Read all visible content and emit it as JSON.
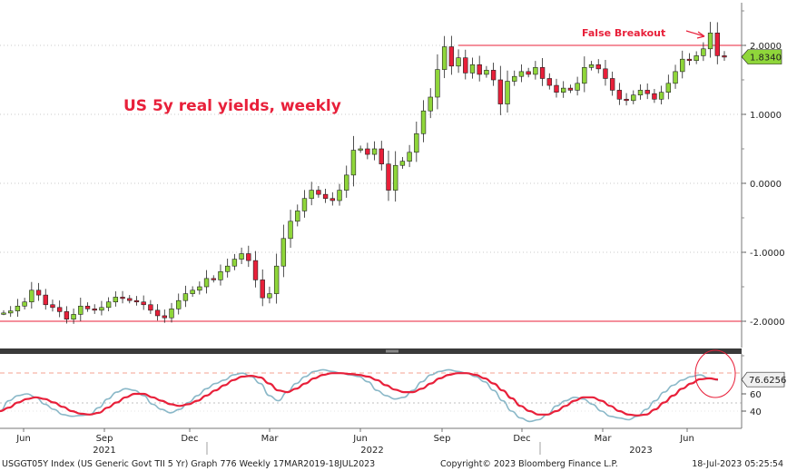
{
  "chart_data": [
    {
      "type": "candlestick",
      "title": "US 5y real yields, weekly",
      "annotation": "False Breakout",
      "y_ticks": [
        "2.0000",
        "1.0000",
        "0.0000",
        "-1.0000",
        "-2.0000"
      ],
      "y_tick_values": [
        2,
        1,
        0,
        -1,
        -2
      ],
      "ylim": [
        -2.6,
        2.6
      ],
      "last_value_label": "1.8340",
      "last_value": 1.834,
      "resistance_level": 2.0,
      "support_level": -2.0,
      "up_color": "#8fd63a",
      "down_color": "#e8203a",
      "label_color": "#e8203a",
      "start_value": -1.88,
      "closes": [
        -1.88,
        -1.85,
        -1.78,
        -1.72,
        -1.55,
        -1.62,
        -1.76,
        -1.8,
        -1.86,
        -1.97,
        -1.9,
        -1.78,
        -1.82,
        -1.84,
        -1.8,
        -1.72,
        -1.65,
        -1.67,
        -1.7,
        -1.72,
        -1.76,
        -1.84,
        -1.92,
        -1.95,
        -1.82,
        -1.7,
        -1.6,
        -1.55,
        -1.5,
        -1.38,
        -1.4,
        -1.28,
        -1.2,
        -1.1,
        -1.02,
        -1.12,
        -1.4,
        -1.66,
        -1.6,
        -1.2,
        -0.8,
        -0.55,
        -0.4,
        -0.22,
        -0.1,
        -0.16,
        -0.22,
        -0.25,
        -0.1,
        0.12,
        0.48,
        0.5,
        0.42,
        0.5,
        0.28,
        -0.1,
        0.26,
        0.32,
        0.45,
        0.72,
        1.05,
        1.25,
        1.65,
        1.98,
        1.7,
        1.82,
        1.6,
        1.72,
        1.58,
        1.64,
        1.5,
        1.15,
        1.48,
        1.55,
        1.62,
        1.58,
        1.68,
        1.52,
        1.42,
        1.32,
        1.38,
        1.35,
        1.45,
        1.68,
        1.72,
        1.66,
        1.52,
        1.35,
        1.22,
        1.2,
        1.28,
        1.35,
        1.3,
        1.22,
        1.32,
        1.45,
        1.62,
        1.8,
        1.78,
        1.85,
        1.95,
        2.18,
        1.85,
        1.83
      ],
      "osc_ticks": [
        "60",
        "40"
      ],
      "osc_tick_values": [
        60,
        40
      ],
      "osc_last_value_label": "76.6256",
      "osc_last_value": 76.6256,
      "osc_fast_color": "#8ab8c8",
      "osc_slow_color": "#e8203a",
      "osc_fast": [
        40,
        52,
        58,
        60,
        56,
        48,
        42,
        36,
        34,
        35,
        36,
        44,
        54,
        62,
        66,
        64,
        58,
        48,
        42,
        38,
        42,
        50,
        58,
        66,
        72,
        76,
        82,
        84,
        80,
        72,
        58,
        52,
        62,
        72,
        80,
        86,
        88,
        86,
        84,
        82,
        80,
        74,
        64,
        58,
        54,
        56,
        64,
        74,
        82,
        86,
        88,
        86,
        84,
        80,
        74,
        64,
        52,
        40,
        32,
        28,
        30,
        36,
        46,
        52,
        56,
        54,
        48,
        40,
        34,
        32,
        30,
        34,
        42,
        52,
        62,
        70,
        76,
        80,
        82,
        78,
        76
      ],
      "osc_slow": [
        40,
        44,
        50,
        54,
        56,
        54,
        50,
        45,
        40,
        37,
        36,
        38,
        44,
        50,
        56,
        60,
        60,
        56,
        52,
        48,
        46,
        48,
        52,
        58,
        64,
        70,
        76,
        80,
        81,
        79,
        72,
        64,
        62,
        66,
        72,
        78,
        82,
        84,
        84,
        83,
        82,
        80,
        76,
        70,
        65,
        62,
        62,
        66,
        72,
        78,
        82,
        84,
        84,
        82,
        78,
        72,
        64,
        55,
        46,
        40,
        36,
        36,
        40,
        46,
        52,
        56,
        56,
        52,
        46,
        40,
        36,
        35,
        36,
        42,
        50,
        58,
        66,
        72,
        77,
        78,
        76.6
      ]
    }
  ],
  "x_labels": {
    "months": [
      "Jun",
      "Sep",
      "Dec",
      "Mar",
      "Jun",
      "Sep",
      "Dec",
      "Mar",
      "Jun"
    ],
    "years": [
      "2021",
      "2022",
      "2023"
    ]
  },
  "footer": {
    "left": "USGGT05Y Index (US Generic Govt TII 5 Yr) Graph 776  Weekly 17MAR2019-18JUL2023",
    "center": "Copyright© 2023 Bloomberg Finance L.P.",
    "right": "18-Jul-2023  05:25:54"
  }
}
